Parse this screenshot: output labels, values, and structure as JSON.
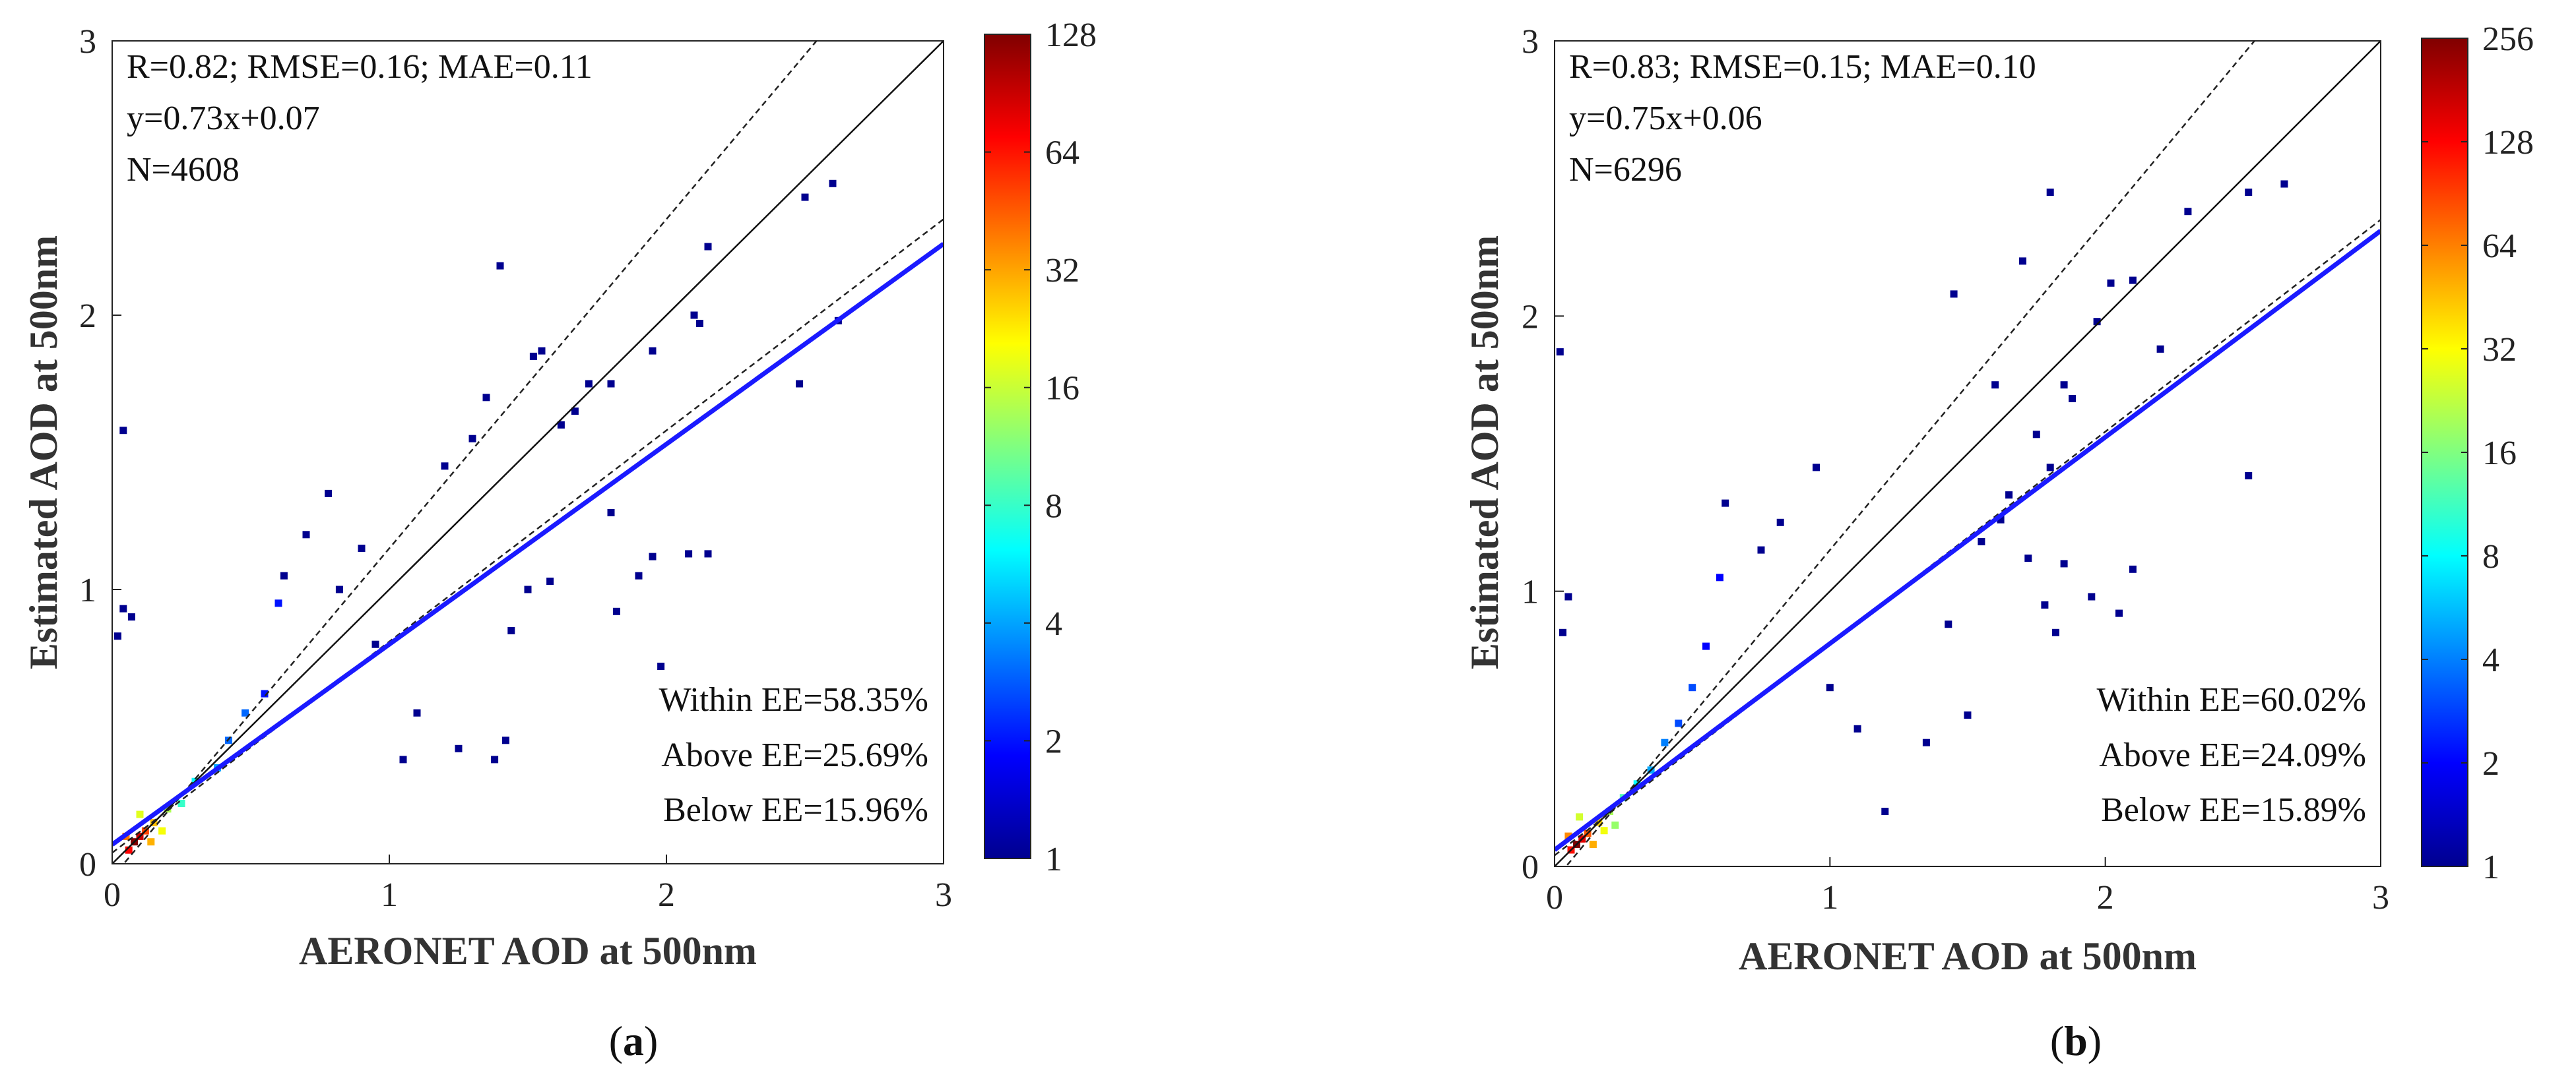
{
  "figure": {
    "panels": [
      {
        "caption_letter": "a",
        "colorbar_title": ""
      },
      {
        "caption_letter": "b",
        "colorbar_title": ""
      }
    ],
    "colors": {
      "axis": "#222222",
      "one_to_one": "#111111",
      "ee_envelope": "#222222",
      "fit_line": "#1a1aff",
      "scatter_low": "#00008f",
      "scatter_high": "#800000"
    }
  },
  "chart_data": [
    {
      "type": "heatmap",
      "subtype": "density scatter",
      "panel": "a",
      "xlabel": "AERONET AOD at 500nm",
      "ylabel": "Estimated AOD at 500nm",
      "xlim": [
        0,
        3
      ],
      "ylim": [
        0,
        3
      ],
      "xticks": [
        0,
        1,
        2,
        3
      ],
      "yticks": [
        0,
        1,
        2,
        3
      ],
      "stats": {
        "line1": "R=0.82; RMSE=0.16; MAE=0.11",
        "line2": "y=0.73x+0.07",
        "line3": "N=4608"
      },
      "regression": {
        "slope": 0.73,
        "intercept": 0.07
      },
      "ee_lines": [
        {
          "slope": 1.2,
          "intercept": -0.05
        },
        {
          "slope": 0.77,
          "intercept": 0.04
        }
      ],
      "ee_summary": [
        "Within EE=58.35%",
        "Above EE=25.69%",
        "Below EE=15.96%"
      ],
      "colorbar": {
        "scale": "log2",
        "min": 1,
        "max": 128,
        "tick_labels": [
          "1",
          "2",
          "4",
          "8",
          "16",
          "32",
          "64",
          "128"
        ]
      },
      "sample_points": [
        [
          0.04,
          1.58,
          1
        ],
        [
          0.04,
          0.93,
          1
        ],
        [
          0.02,
          0.83,
          1
        ],
        [
          0.07,
          0.9,
          1
        ],
        [
          1.4,
          2.18,
          1
        ],
        [
          1.55,
          1.87,
          1
        ],
        [
          1.52,
          1.85,
          1
        ],
        [
          2.15,
          2.25,
          1
        ],
        [
          2.1,
          2.0,
          1
        ],
        [
          2.12,
          1.97,
          1
        ],
        [
          2.5,
          2.43,
          1
        ],
        [
          2.6,
          2.48,
          1
        ],
        [
          2.48,
          1.75,
          1
        ],
        [
          2.62,
          1.98,
          1
        ],
        [
          1.95,
          1.87,
          1
        ],
        [
          1.8,
          1.75,
          1
        ],
        [
          1.72,
          1.75,
          1
        ],
        [
          1.67,
          1.65,
          1
        ],
        [
          1.62,
          1.6,
          1
        ],
        [
          1.35,
          1.7,
          1
        ],
        [
          1.3,
          1.55,
          1
        ],
        [
          1.2,
          1.45,
          1
        ],
        [
          1.8,
          1.28,
          1
        ],
        [
          1.95,
          1.12,
          1
        ],
        [
          1.9,
          1.05,
          1
        ],
        [
          2.15,
          1.13,
          1
        ],
        [
          2.08,
          1.13,
          1
        ],
        [
          1.58,
          1.03,
          1
        ],
        [
          1.82,
          0.92,
          1
        ],
        [
          1.5,
          1.0,
          1
        ],
        [
          1.44,
          0.85,
          1
        ],
        [
          1.98,
          0.72,
          1
        ],
        [
          1.42,
          0.45,
          1
        ],
        [
          1.38,
          0.38,
          1
        ],
        [
          1.25,
          0.42,
          1
        ],
        [
          1.05,
          0.38,
          1
        ],
        [
          1.1,
          0.55,
          1
        ],
        [
          0.95,
          0.8,
          1
        ],
        [
          0.9,
          1.15,
          1
        ],
        [
          0.82,
          1.0,
          1
        ],
        [
          0.78,
          1.35,
          1
        ],
        [
          0.7,
          1.2,
          1
        ],
        [
          0.62,
          1.05,
          1
        ],
        [
          0.6,
          0.95,
          2
        ],
        [
          0.55,
          0.62,
          2
        ],
        [
          0.48,
          0.55,
          3
        ],
        [
          0.42,
          0.45,
          3
        ],
        [
          0.38,
          0.35,
          4
        ],
        [
          0.3,
          0.3,
          6
        ],
        [
          0.25,
          0.22,
          8
        ],
        [
          0.2,
          0.2,
          14
        ],
        [
          0.15,
          0.15,
          28
        ],
        [
          0.12,
          0.12,
          50
        ],
        [
          0.1,
          0.1,
          90
        ],
        [
          0.08,
          0.08,
          128
        ],
        [
          0.06,
          0.05,
          70
        ],
        [
          0.05,
          0.1,
          40
        ],
        [
          0.14,
          0.08,
          30
        ],
        [
          0.18,
          0.12,
          20
        ],
        [
          0.1,
          0.18,
          18
        ]
      ]
    },
    {
      "type": "heatmap",
      "subtype": "density scatter",
      "panel": "b",
      "xlabel": "AERONET AOD at 500nm",
      "ylabel": "Estimated AOD at 500nm",
      "xlim": [
        0,
        3
      ],
      "ylim": [
        0,
        3
      ],
      "xticks": [
        0,
        1,
        2,
        3
      ],
      "yticks": [
        0,
        1,
        2,
        3
      ],
      "stats": {
        "line1": "R=0.83; RMSE=0.15; MAE=0.10",
        "line2": "y=0.75x+0.06",
        "line3": "N=6296"
      },
      "regression": {
        "slope": 0.75,
        "intercept": 0.06
      },
      "ee_lines": [
        {
          "slope": 1.2,
          "intercept": -0.05
        },
        {
          "slope": 0.77,
          "intercept": 0.04
        }
      ],
      "ee_summary": [
        "Within EE=60.02%",
        "Above EE=24.09%",
        "Below EE=15.89%"
      ],
      "colorbar": {
        "scale": "log2",
        "min": 1,
        "max": 256,
        "tick_labels": [
          "1",
          "2",
          "4",
          "8",
          "16",
          "32",
          "64",
          "128",
          "256"
        ]
      },
      "sample_points": [
        [
          0.02,
          1.87,
          1
        ],
        [
          0.05,
          0.98,
          1
        ],
        [
          0.03,
          0.85,
          1
        ],
        [
          1.8,
          2.45,
          1
        ],
        [
          2.3,
          2.38,
          1
        ],
        [
          2.52,
          2.45,
          1
        ],
        [
          2.65,
          2.48,
          1
        ],
        [
          1.7,
          2.2,
          1
        ],
        [
          1.45,
          2.08,
          1
        ],
        [
          1.97,
          1.98,
          1
        ],
        [
          2.02,
          2.12,
          1
        ],
        [
          2.1,
          2.13,
          1
        ],
        [
          2.2,
          1.88,
          1
        ],
        [
          1.85,
          1.75,
          1
        ],
        [
          1.88,
          1.7,
          1
        ],
        [
          1.6,
          1.75,
          1
        ],
        [
          1.75,
          1.57,
          1
        ],
        [
          1.8,
          1.45,
          1
        ],
        [
          1.65,
          1.35,
          1
        ],
        [
          1.62,
          1.26,
          1
        ],
        [
          1.55,
          1.18,
          1
        ],
        [
          1.72,
          1.12,
          1
        ],
        [
          1.85,
          1.1,
          1
        ],
        [
          1.95,
          0.98,
          1
        ],
        [
          1.78,
          0.95,
          1
        ],
        [
          1.82,
          0.85,
          1
        ],
        [
          2.1,
          1.08,
          1
        ],
        [
          2.05,
          0.92,
          1
        ],
        [
          2.52,
          1.42,
          1
        ],
        [
          1.43,
          0.88,
          1
        ],
        [
          1.5,
          0.55,
          1
        ],
        [
          1.35,
          0.45,
          1
        ],
        [
          1.2,
          0.2,
          1
        ],
        [
          1.1,
          0.5,
          1
        ],
        [
          1.0,
          0.65,
          1
        ],
        [
          0.95,
          1.45,
          1
        ],
        [
          0.82,
          1.25,
          1
        ],
        [
          0.75,
          1.15,
          1
        ],
        [
          0.62,
          1.32,
          1
        ],
        [
          0.6,
          1.05,
          2
        ],
        [
          0.55,
          0.8,
          2
        ],
        [
          0.5,
          0.65,
          3
        ],
        [
          0.45,
          0.52,
          3
        ],
        [
          0.4,
          0.45,
          4
        ],
        [
          0.35,
          0.35,
          5
        ],
        [
          0.3,
          0.3,
          8
        ],
        [
          0.25,
          0.25,
          12
        ],
        [
          0.2,
          0.2,
          20
        ],
        [
          0.16,
          0.16,
          40
        ],
        [
          0.12,
          0.12,
          80
        ],
        [
          0.1,
          0.1,
          150
        ],
        [
          0.08,
          0.08,
          256
        ],
        [
          0.06,
          0.06,
          120
        ],
        [
          0.05,
          0.11,
          60
        ],
        [
          0.14,
          0.08,
          50
        ],
        [
          0.18,
          0.13,
          30
        ],
        [
          0.09,
          0.18,
          25
        ],
        [
          0.22,
          0.15,
          18
        ]
      ]
    }
  ]
}
